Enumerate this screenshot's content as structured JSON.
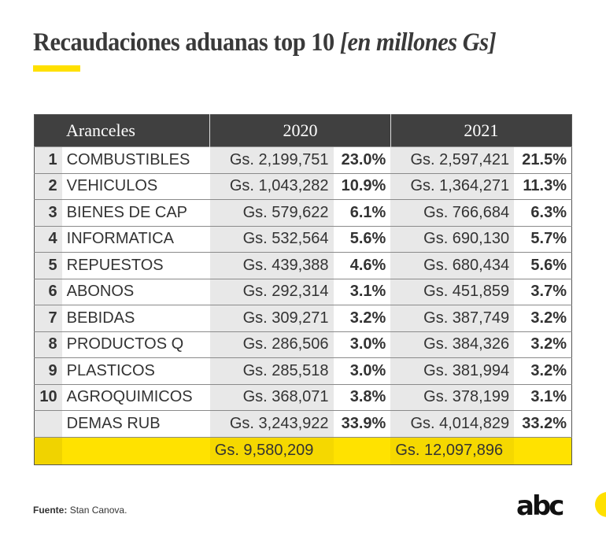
{
  "title": "Recaudaciones aduanas top 10",
  "title_unit": "[en millones Gs]",
  "colors": {
    "accent": "#ffe000",
    "header_bg": "#404040"
  },
  "chart_data": {
    "type": "table",
    "title": "Recaudaciones aduanas top 10 [en millones Gs]",
    "columns": [
      "Aranceles",
      "2020",
      "2021"
    ],
    "rows": [
      {
        "rank": "1",
        "name": "COMBUSTIBLES",
        "v2020": "Gs. 2,199,751",
        "p2020": "23.0%",
        "v2021": "Gs. 2,597,421",
        "p2021": "21.5%"
      },
      {
        "rank": "2",
        "name": "VEHICULOS",
        "v2020": "Gs. 1,043,282",
        "p2020": "10.9%",
        "v2021": "Gs. 1,364,271",
        "p2021": "11.3%"
      },
      {
        "rank": "3",
        "name": "BIENES DE CAP",
        "v2020": "Gs. 579,622",
        "p2020": "6.1%",
        "v2021": "Gs. 766,684",
        "p2021": "6.3%"
      },
      {
        "rank": "4",
        "name": "INFORMATICA",
        "v2020": "Gs. 532,564",
        "p2020": "5.6%",
        "v2021": "Gs. 690,130",
        "p2021": "5.7%"
      },
      {
        "rank": "5",
        "name": "REPUESTOS",
        "v2020": "Gs. 439,388",
        "p2020": "4.6%",
        "v2021": "Gs. 680,434",
        "p2021": "5.6%"
      },
      {
        "rank": "6",
        "name": "ABONOS",
        "v2020": "Gs. 292,314",
        "p2020": "3.1%",
        "v2021": "Gs. 451,859",
        "p2021": "3.7%"
      },
      {
        "rank": "7",
        "name": "BEBIDAS",
        "v2020": "Gs. 309,271",
        "p2020": "3.2%",
        "v2021": "Gs. 387,749",
        "p2021": "3.2%"
      },
      {
        "rank": "8",
        "name": "PRODUCTOS Q",
        "v2020": "Gs. 286,506",
        "p2020": "3.0%",
        "v2021": "Gs. 384,326",
        "p2021": "3.2%"
      },
      {
        "rank": "9",
        "name": "PLASTICOS",
        "v2020": "Gs. 285,518",
        "p2020": "3.0%",
        "v2021": "Gs. 381,994",
        "p2021": "3.2%"
      },
      {
        "rank": "10",
        "name": "AGROQUIMICOS",
        "v2020": "Gs. 368,071",
        "p2020": "3.8%",
        "v2021": "Gs. 378,199",
        "p2021": "3.1%"
      },
      {
        "rank": "",
        "name": "DEMAS RUB",
        "v2020": "Gs. 3,243,922",
        "p2020": "33.9%",
        "v2021": "Gs. 4,014,829",
        "p2021": "33.2%"
      }
    ],
    "totals": {
      "v2020": "Gs. 9,580,209",
      "v2021": "Gs. 12,097,896"
    }
  },
  "source_label": "Fuente:",
  "source_text": "Stan Canova.",
  "logo_text": "abc"
}
